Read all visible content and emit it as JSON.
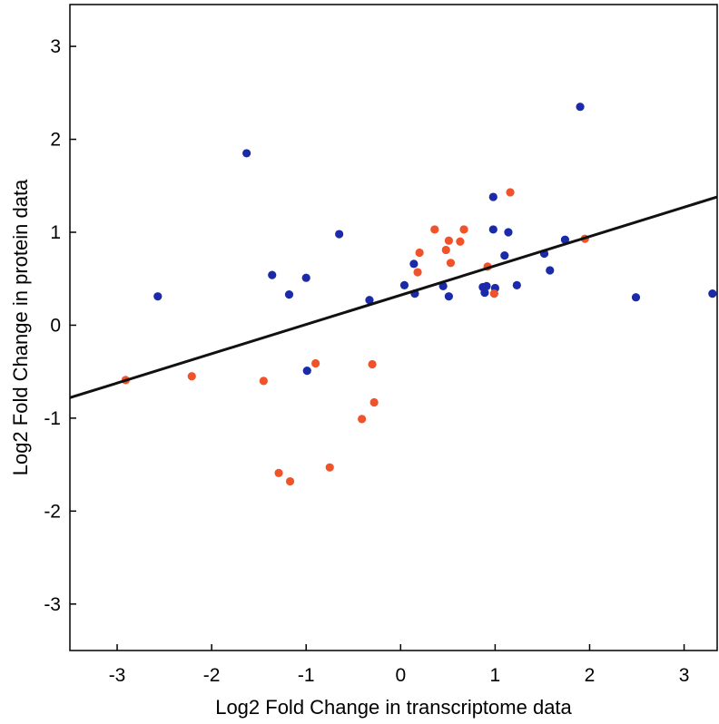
{
  "chart_data": {
    "type": "scatter",
    "xlabel": "Log2 Fold Change in transcriptome data",
    "ylabel": "Log2 Fold Change in protein data",
    "xlim": [
      -3.5,
      3.35
    ],
    "ylim": [
      -3.5,
      3.45
    ],
    "xticks": [
      -3,
      -2,
      -1,
      0,
      1,
      2,
      3
    ],
    "yticks": [
      3,
      2,
      1,
      0,
      -1,
      -2,
      -3
    ],
    "xtick_labels": [
      "-3",
      "-2",
      "-1",
      "0",
      "1",
      "2",
      "3"
    ],
    "ytick_labels": [
      "3",
      "2",
      "1",
      "0",
      "-1",
      "-2",
      "-3"
    ],
    "grid": false,
    "colors": {
      "blue": "#1a2aa8",
      "red": "#f0522a",
      "line": "#111111"
    },
    "series": [
      {
        "color": "#1a2aa8",
        "points": [
          [
            -2.57,
            0.31
          ],
          [
            -1.63,
            1.85
          ],
          [
            -1.36,
            0.54
          ],
          [
            -1.18,
            0.33
          ],
          [
            -1.0,
            0.51
          ],
          [
            -0.99,
            -0.49
          ],
          [
            -0.65,
            0.98
          ],
          [
            -0.33,
            0.27
          ],
          [
            0.04,
            0.43
          ],
          [
            0.14,
            0.66
          ],
          [
            0.15,
            0.34
          ],
          [
            0.45,
            0.42
          ],
          [
            0.51,
            0.31
          ],
          [
            0.87,
            0.41
          ],
          [
            0.89,
            0.35
          ],
          [
            0.91,
            0.42
          ],
          [
            0.98,
            1.03
          ],
          [
            0.98,
            1.38
          ],
          [
            1.0,
            0.4
          ],
          [
            1.1,
            0.75
          ],
          [
            1.14,
            1.0
          ],
          [
            1.23,
            0.43
          ],
          [
            1.52,
            0.77
          ],
          [
            1.58,
            0.59
          ],
          [
            1.74,
            0.92
          ],
          [
            1.9,
            2.35
          ],
          [
            2.49,
            0.3
          ],
          [
            3.3,
            0.34
          ]
        ]
      },
      {
        "color": "#f0522a",
        "points": [
          [
            -2.91,
            -0.59
          ],
          [
            -2.21,
            -0.55
          ],
          [
            -1.45,
            -0.6
          ],
          [
            -1.29,
            -1.59
          ],
          [
            -1.17,
            -1.68
          ],
          [
            -0.9,
            -0.41
          ],
          [
            -0.75,
            -1.53
          ],
          [
            -0.41,
            -1.01
          ],
          [
            -0.3,
            -0.42
          ],
          [
            -0.28,
            -0.83
          ],
          [
            0.18,
            0.57
          ],
          [
            0.2,
            0.78
          ],
          [
            0.36,
            1.03
          ],
          [
            0.48,
            0.81
          ],
          [
            0.51,
            0.91
          ],
          [
            0.53,
            0.67
          ],
          [
            0.63,
            0.9
          ],
          [
            0.67,
            1.03
          ],
          [
            0.92,
            0.63
          ],
          [
            0.99,
            0.34
          ],
          [
            1.16,
            1.43
          ],
          [
            1.95,
            0.93
          ]
        ]
      }
    ],
    "trendline": {
      "x": [
        -3.5,
        3.35
      ],
      "y": [
        -0.78,
        1.38
      ]
    }
  }
}
